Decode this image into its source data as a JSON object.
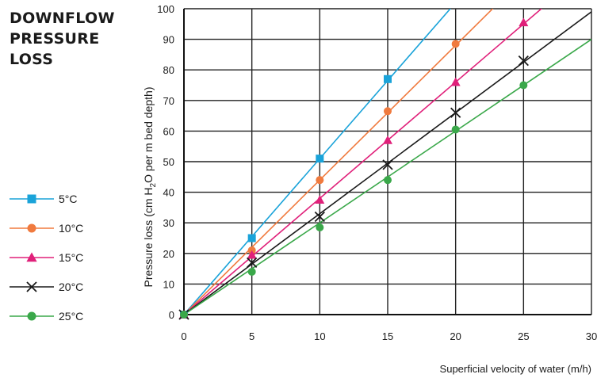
{
  "title_lines": [
    "DOWNFLOW",
    "PRESSURE",
    "LOSS"
  ],
  "chart_data": {
    "type": "line",
    "xlabel": "Superficial velocity of water (m/h)",
    "ylabel": "Pressure loss (cm H",
    "ylabel_sub": "2",
    "ylabel_rest": "O per m bed depth)",
    "xlim": [
      0,
      30
    ],
    "ylim": [
      0,
      100
    ],
    "x_ticks": [
      "0",
      "5",
      "10",
      "15",
      "20",
      "25",
      "30"
    ],
    "y_ticks": [
      "0",
      "10",
      "20",
      "30",
      "40",
      "50",
      "60",
      "70",
      "80",
      "90",
      "100"
    ],
    "grid": true,
    "legend_position": "left",
    "series": [
      {
        "name": "5°C",
        "color": "#1aa3d9",
        "marker": "square",
        "slope": 5.1,
        "points": [
          [
            0,
            0
          ],
          [
            5,
            25
          ],
          [
            10,
            51
          ],
          [
            15,
            77
          ]
        ]
      },
      {
        "name": "10°C",
        "color": "#f07a3e",
        "marker": "circle",
        "slope": 4.4,
        "points": [
          [
            0,
            0
          ],
          [
            5,
            21
          ],
          [
            10,
            44
          ],
          [
            15,
            66.5
          ],
          [
            20,
            88.5
          ]
        ]
      },
      {
        "name": "15°C",
        "color": "#e0207a",
        "marker": "triangle",
        "slope": 3.8,
        "points": [
          [
            0,
            0
          ],
          [
            5,
            19.5
          ],
          [
            10,
            37.5
          ],
          [
            15,
            57
          ],
          [
            20,
            76
          ],
          [
            25,
            95.5
          ]
        ]
      },
      {
        "name": "20°C",
        "color": "#1a1a1a",
        "marker": "x",
        "slope": 3.3,
        "points": [
          [
            0,
            0
          ],
          [
            5,
            17
          ],
          [
            10,
            32
          ],
          [
            15,
            49
          ],
          [
            20,
            66
          ],
          [
            25,
            83
          ]
        ]
      },
      {
        "name": "25°C",
        "color": "#3aa84a",
        "marker": "circle",
        "slope": 3.0,
        "points": [
          [
            0,
            0
          ],
          [
            5,
            14
          ],
          [
            10,
            28.5
          ],
          [
            15,
            44
          ],
          [
            20,
            60.5
          ],
          [
            25,
            75
          ]
        ]
      }
    ]
  }
}
